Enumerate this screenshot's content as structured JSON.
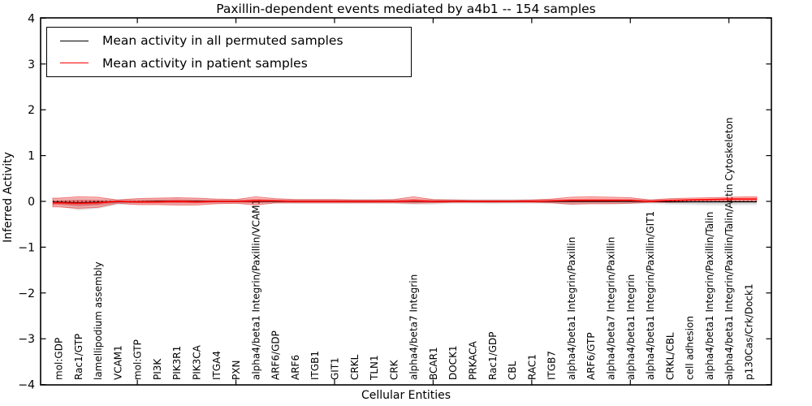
{
  "figure": {
    "title": "Paxillin-dependent events mediated by a4b1 -- 154 samples",
    "xlabel": "Cellular Entities",
    "ylabel": "Inferred Activity"
  },
  "legend": {
    "position": "upper left",
    "items": [
      {
        "label": "Mean activity in all permuted samples",
        "color": "#000000"
      },
      {
        "label": "Mean activity in patient samples",
        "color": "#ff0000"
      }
    ]
  },
  "chart_data": {
    "type": "line",
    "title": "Paxillin-dependent events mediated by a4b1 -- 154 samples",
    "xlabel": "Cellular Entities",
    "ylabel": "Inferred Activity",
    "ylim": [
      -4,
      4
    ],
    "yticks": [
      -4,
      -3,
      -2,
      -1,
      0,
      1,
      2,
      3,
      4
    ],
    "x_major_tick_entities": [
      5,
      10,
      15,
      20,
      25,
      30,
      35
    ],
    "grid": false,
    "zero_line": {
      "y": 0,
      "style": "dotted",
      "color": "#000000"
    },
    "colors": {
      "permuted_line": "#000000",
      "patient_line": "#ff0000",
      "permuted_band": "#777777",
      "patient_band": "#ff0000"
    },
    "categories": [
      "mol:GDP",
      "Rac1/GTP",
      "lamellipodium assembly",
      "VCAM1",
      "mol:GTP",
      "PI3K",
      "PIK3R1",
      "PIK3CA",
      "ITGA4",
      "PXN",
      "alpha4/beta1 Integrin/Paxillin/VCAM1",
      "ARF6/GDP",
      "ARF6",
      "ITGB1",
      "GIT1",
      "CRKL",
      "TLN1",
      "CRK",
      "alpha4/beta7 Integrin",
      "BCAR1",
      "DOCK1",
      "PRKACA",
      "Rac1/GDP",
      "CBL",
      "RAC1",
      "ITGB7",
      "alpha4/beta1 Integrin/Paxillin",
      "ARF6/GTP",
      "alpha4/beta7 Integrin/Paxillin",
      "alpha4/beta1 Integrin",
      "alpha4/beta1 Integrin/Paxillin/GIT1",
      "CRKL/CBL",
      "cell adhesion",
      "alpha4/beta1 Integrin/Paxillin/Talin",
      "alpha4/beta1 Integrin/Paxillin/Talin/Actin Cytoskeleton",
      "p130Cas/Crk/Dock1"
    ],
    "series": [
      {
        "name": "Mean activity in all permuted samples",
        "values": [
          -0.02,
          -0.03,
          -0.02,
          -0.01,
          -0.01,
          0,
          0,
          0,
          0,
          0,
          0,
          0,
          0,
          0,
          0,
          0,
          0,
          0,
          0,
          0,
          0,
          0,
          0,
          0,
          0,
          0,
          0,
          0,
          0,
          0,
          0,
          -0.01,
          -0.01,
          -0.01,
          -0.01,
          -0.01
        ]
      },
      {
        "name": "Mean activity in patient samples",
        "values": [
          -0.03,
          -0.04,
          -0.03,
          0,
          -0.01,
          -0.01,
          0,
          -0.01,
          0,
          0,
          0.01,
          0.01,
          0,
          0,
          0,
          0,
          0,
          0,
          0.01,
          0,
          0,
          0,
          0,
          0,
          0,
          0.01,
          0.02,
          0.02,
          0.02,
          0.02,
          0,
          0.02,
          0.03,
          0.04,
          0.05,
          0.05
        ]
      }
    ],
    "bands": [
      {
        "name": "permuted-range",
        "hi": [
          0.06,
          0.07,
          0.06,
          0.05,
          0.06,
          0.06,
          0.07,
          0.06,
          0.05,
          0.05,
          0.06,
          0.05,
          0.05,
          0.05,
          0.05,
          0.05,
          0.05,
          0.05,
          0.06,
          0.05,
          0.05,
          0.05,
          0.05,
          0.05,
          0.05,
          0.05,
          0.05,
          0.06,
          0.06,
          0.06,
          0.05,
          0.04,
          0.04,
          0.04,
          0.03,
          0.03
        ],
        "lo": [
          -0.1,
          -0.2,
          -0.16,
          -0.08,
          -0.06,
          -0.06,
          -0.07,
          -0.06,
          -0.05,
          -0.05,
          -0.06,
          -0.05,
          -0.05,
          -0.05,
          -0.05,
          -0.05,
          -0.05,
          -0.05,
          -0.07,
          -0.07,
          -0.05,
          -0.05,
          -0.06,
          -0.05,
          -0.05,
          -0.05,
          -0.08,
          -0.06,
          -0.06,
          -0.06,
          -0.05,
          -0.07,
          -0.08,
          -0.09,
          -0.09,
          -0.08
        ]
      },
      {
        "name": "patient-range",
        "hi": [
          0.07,
          0.1,
          0.09,
          0.03,
          0.06,
          0.07,
          0.08,
          0.07,
          0.05,
          0.04,
          0.1,
          0.06,
          0.04,
          0.04,
          0.04,
          0.03,
          0.03,
          0.04,
          0.1,
          0.04,
          0.03,
          0.02,
          0.02,
          0.02,
          0.03,
          0.05,
          0.09,
          0.1,
          0.09,
          0.08,
          0.03,
          0.06,
          0.07,
          0.08,
          0.09,
          0.1
        ],
        "lo": [
          -0.12,
          -0.15,
          -0.13,
          -0.04,
          -0.07,
          -0.07,
          -0.08,
          -0.08,
          -0.05,
          -0.04,
          -0.08,
          -0.03,
          -0.03,
          -0.03,
          -0.03,
          -0.03,
          -0.03,
          -0.03,
          -0.04,
          -0.03,
          -0.02,
          -0.02,
          -0.02,
          -0.02,
          -0.02,
          -0.03,
          -0.06,
          -0.05,
          -0.05,
          -0.04,
          -0.02,
          -0.02,
          -0.01,
          0.0,
          0.01,
          0.01
        ]
      }
    ]
  }
}
